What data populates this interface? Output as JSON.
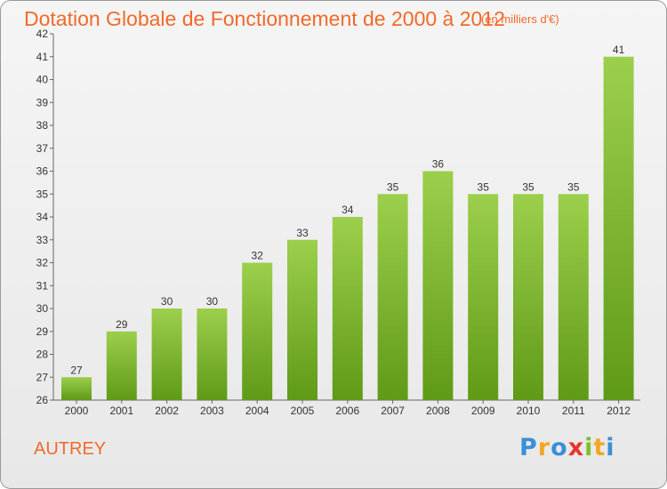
{
  "header": {
    "title": "Dotation Globale de Fonctionnement de 2000 à 2012",
    "subtitle": "(en milliers d'€)"
  },
  "footer": {
    "town": "AUTREY",
    "logo_letters": [
      "P",
      "r",
      "o",
      "x",
      "i",
      "t",
      "i"
    ],
    "logo_colors": [
      "#3a8fd6",
      "#f5a623",
      "#3a8fd6",
      "#e8352b",
      "#7dbf2a",
      "#f5a623",
      "#3a8fd6"
    ]
  },
  "colors": {
    "title": "#f06a2a",
    "bar_light": "#9ccf4c",
    "bar_dark": "#5f9a17",
    "axis": "#666666",
    "grid_tick": "#666666"
  },
  "chart_data": {
    "type": "bar",
    "title": "Dotation Globale de Fonctionnement de 2000 à 2012",
    "subtitle": "(en milliers d'€)",
    "categories": [
      "2000",
      "2001",
      "2002",
      "2003",
      "2004",
      "2005",
      "2006",
      "2007",
      "2008",
      "2009",
      "2010",
      "2011",
      "2012"
    ],
    "values": [
      27,
      29,
      30,
      30,
      32,
      33,
      34,
      35,
      36,
      35,
      35,
      35,
      41
    ],
    "ylim": [
      26,
      42
    ],
    "yticks": [
      26,
      27,
      28,
      29,
      30,
      31,
      32,
      33,
      34,
      35,
      36,
      37,
      38,
      39,
      40,
      41,
      42
    ],
    "grid": false,
    "data_labels": true
  }
}
